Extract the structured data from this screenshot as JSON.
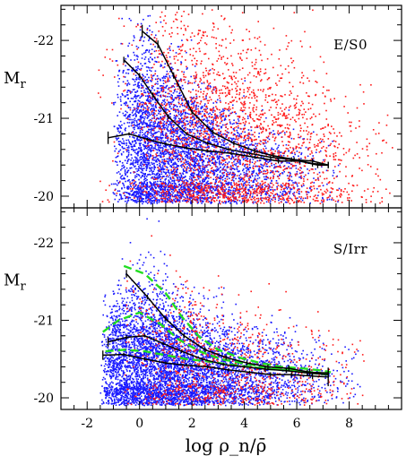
{
  "chart_data": [
    {
      "type": "scatter",
      "label": "E/S0",
      "ylabel": "M_r",
      "xlim": [
        -3,
        10
      ],
      "ylim": [
        -19.85,
        -22.45
      ],
      "yticks": [
        -22,
        -21,
        -20
      ],
      "ytick_labels": [
        "-22",
        "-21",
        "-20"
      ],
      "clouds": [
        {
          "name": "blue",
          "color": "#1a1aff",
          "count": 4200,
          "density": [
            [
              -2,
              -0.8
            ],
            [
              0,
              1.0
            ],
            [
              1,
              1.0
            ],
            [
              2,
              0.7
            ],
            [
              3,
              0.45
            ],
            [
              4,
              0.3
            ],
            [
              5,
              0.18
            ],
            [
              6,
              0.08
            ],
            [
              7,
              0.03
            ]
          ],
          "ridge": [
            [
              -2,
              -20.55
            ],
            [
              0,
              -20.75
            ],
            [
              2,
              -20.55
            ],
            [
              4,
              -20.4
            ],
            [
              6,
              -20.35
            ],
            [
              7,
              -20.3
            ]
          ],
          "spread": [
            [
              -2,
              0.35
            ],
            [
              0,
              0.65
            ],
            [
              2,
              0.45
            ],
            [
              4,
              0.3
            ],
            [
              7,
              0.25
            ]
          ]
        },
        {
          "name": "red",
          "color": "#ff1a1a",
          "count": 2400,
          "density": [
            [
              -1,
              0.05
            ],
            [
              0,
              0.25
            ],
            [
              1,
              0.7
            ],
            [
              2,
              1.0
            ],
            [
              3,
              1.0
            ],
            [
              4,
              0.9
            ],
            [
              5,
              0.75
            ],
            [
              6,
              0.6
            ],
            [
              7,
              0.4
            ],
            [
              8,
              0.2
            ],
            [
              9,
              0.08
            ]
          ],
          "ridge": [
            [
              0,
              -21.2
            ],
            [
              2,
              -21.0
            ],
            [
              4,
              -20.75
            ],
            [
              6,
              -20.6
            ],
            [
              8,
              -20.5
            ]
          ],
          "spread": [
            [
              0,
              0.9
            ],
            [
              3,
              0.75
            ],
            [
              6,
              0.6
            ],
            [
              8,
              0.5
            ]
          ]
        }
      ],
      "lines": [
        {
          "name": "upper",
          "x": [
            0.1,
            0.7,
            1.3,
            2.0,
            2.8,
            3.6,
            4.4,
            5.1,
            5.9,
            6.6,
            7.2
          ],
          "y": [
            -22.12,
            -21.95,
            -21.55,
            -21.08,
            -20.82,
            -20.68,
            -20.58,
            -20.52,
            -20.47,
            -20.42,
            -20.4
          ],
          "err": [
            0.08,
            0.05,
            0.04,
            0.03,
            0.03,
            0.03,
            0.03,
            0.03,
            0.03,
            0.04,
            0.04
          ]
        },
        {
          "name": "middle",
          "x": [
            -0.6,
            0.0,
            0.5,
            1.1,
            1.8,
            2.6,
            3.4,
            4.2,
            5.0,
            5.8,
            6.6,
            7.2
          ],
          "y": [
            -21.75,
            -21.55,
            -21.3,
            -21.02,
            -20.8,
            -20.68,
            -20.6,
            -20.55,
            -20.5,
            -20.47,
            -20.45,
            -20.4
          ],
          "err": [
            0.04,
            0.03,
            0.03,
            0.03,
            0.02,
            0.02,
            0.02,
            0.02,
            0.02,
            0.03,
            0.03,
            0.04
          ]
        },
        {
          "name": "lower",
          "x": [
            -1.2,
            -0.4,
            0.3,
            1.0,
            1.8,
            2.6,
            3.5,
            4.4,
            5.3,
            6.1,
            6.8,
            7.2
          ],
          "y": [
            -20.75,
            -20.8,
            -20.73,
            -20.67,
            -20.62,
            -20.58,
            -20.55,
            -20.5,
            -20.45,
            -20.45,
            -20.4,
            -20.4
          ],
          "err": [
            0.08,
            0.02,
            0.02,
            0.02,
            0.02,
            0.02,
            0.02,
            0.02,
            0.03,
            0.03,
            0.04,
            0.04
          ]
        }
      ]
    },
    {
      "type": "scatter",
      "label": "S/Irr",
      "ylabel": "M_r",
      "xlabel": "log ρ_n/ρ̄",
      "xlim": [
        -3,
        10
      ],
      "xticks": [
        -2,
        0,
        2,
        4,
        6,
        8
      ],
      "xtick_labels": [
        "-2",
        "0",
        "2",
        "4",
        "6",
        "8"
      ],
      "ylim": [
        -19.85,
        -22.45
      ],
      "yticks": [
        -22,
        -21,
        -20
      ],
      "ytick_labels": [
        "-22",
        "-21",
        "-20"
      ],
      "clouds": [
        {
          "name": "blue",
          "color": "#1a1aff",
          "count": 5200,
          "density": [
            [
              -2,
              -0.8
            ],
            [
              -1,
              0.75
            ],
            [
              0,
              1.0
            ],
            [
              1,
              1.0
            ],
            [
              2,
              0.75
            ],
            [
              3,
              0.5
            ],
            [
              4,
              0.35
            ],
            [
              5,
              0.22
            ],
            [
              6,
              0.12
            ],
            [
              7,
              0.06
            ],
            [
              8,
              0.02
            ]
          ],
          "ridge": [
            [
              -2,
              -20.45
            ],
            [
              0,
              -20.5
            ],
            [
              2,
              -20.4
            ],
            [
              4,
              -20.3
            ],
            [
              6,
              -20.3
            ],
            [
              7.5,
              -20.3
            ]
          ],
          "spread": [
            [
              -2,
              0.35
            ],
            [
              0,
              0.5
            ],
            [
              2,
              0.4
            ],
            [
              4,
              0.3
            ],
            [
              7,
              0.25
            ]
          ]
        },
        {
          "name": "red",
          "color": "#ff1a1a",
          "count": 900,
          "density": [
            [
              0,
              0.3
            ],
            [
              1,
              0.8
            ],
            [
              2,
              1.0
            ],
            [
              3,
              1.0
            ],
            [
              4,
              0.8
            ],
            [
              5,
              0.6
            ],
            [
              6,
              0.4
            ],
            [
              7,
              0.25
            ],
            [
              8,
              0.1
            ]
          ],
          "ridge": [
            [
              0,
              -20.6
            ],
            [
              2,
              -20.5
            ],
            [
              4,
              -20.4
            ],
            [
              6,
              -20.35
            ],
            [
              8,
              -20.3
            ]
          ],
          "spread": [
            [
              0,
              0.6
            ],
            [
              3,
              0.45
            ],
            [
              6,
              0.35
            ],
            [
              8,
              0.3
            ]
          ]
        }
      ],
      "lines": [
        {
          "name": "upper",
          "x": [
            -0.5,
            0.3,
            1.0,
            1.7,
            2.5,
            3.3,
            4.1,
            4.9,
            5.7,
            6.5,
            7.2
          ],
          "y": [
            -21.6,
            -21.3,
            -21.02,
            -20.8,
            -20.62,
            -20.52,
            -20.45,
            -20.4,
            -20.38,
            -20.33,
            -20.32
          ],
          "err": [
            0.05,
            0.03,
            0.03,
            0.03,
            0.03,
            0.03,
            0.03,
            0.03,
            0.04,
            0.05,
            0.06
          ]
        },
        {
          "name": "middle",
          "x": [
            -1.2,
            -0.5,
            0.2,
            0.9,
            1.6,
            2.4,
            3.2,
            4.0,
            4.8,
            5.6,
            6.4,
            7.2
          ],
          "y": [
            -20.72,
            -20.78,
            -20.8,
            -20.7,
            -20.6,
            -20.5,
            -20.43,
            -20.4,
            -20.37,
            -20.35,
            -20.32,
            -20.3
          ],
          "err": [
            0.06,
            0.03,
            0.02,
            0.02,
            0.02,
            0.02,
            0.02,
            0.02,
            0.03,
            0.03,
            0.04,
            0.05
          ]
        },
        {
          "name": "lower",
          "x": [
            -1.4,
            -0.6,
            0.2,
            1.0,
            1.8,
            2.6,
            3.4,
            4.2,
            5.0,
            5.8,
            6.6,
            7.2
          ],
          "y": [
            -20.55,
            -20.56,
            -20.5,
            -20.45,
            -20.42,
            -20.4,
            -20.36,
            -20.33,
            -20.3,
            -20.3,
            -20.28,
            -20.27
          ],
          "err": [
            0.06,
            0.02,
            0.02,
            0.02,
            0.02,
            0.02,
            0.02,
            0.02,
            0.03,
            0.03,
            0.04,
            0.12
          ]
        }
      ],
      "dashed_lines": [
        {
          "name": "green-upper",
          "color": "#22dd22",
          "x": [
            -0.6,
            0.2,
            1.0,
            1.6,
            2.3,
            3.0,
            3.8,
            4.6,
            5.4,
            6.2,
            7.0,
            7.3
          ],
          "y": [
            -21.7,
            -21.6,
            -21.35,
            -21.05,
            -20.78,
            -20.62,
            -20.52,
            -20.45,
            -20.4,
            -20.38,
            -20.35,
            -20.33
          ]
        },
        {
          "name": "green-middle",
          "color": "#22dd22",
          "x": [
            -1.4,
            -0.8,
            0.0,
            0.8,
            1.5,
            2.3,
            3.1,
            3.9,
            4.7,
            5.5,
            6.3,
            7.2
          ],
          "y": [
            -20.85,
            -21.0,
            -21.1,
            -20.95,
            -20.75,
            -20.6,
            -20.5,
            -20.45,
            -20.4,
            -20.37,
            -20.33,
            -20.3
          ]
        },
        {
          "name": "green-lower",
          "color": "#22dd22",
          "x": [
            -1.3,
            -0.6,
            0.2,
            1.0,
            1.8,
            2.6,
            3.4,
            4.2,
            5.0,
            5.8,
            6.6,
            7.2
          ],
          "y": [
            -20.6,
            -20.62,
            -20.6,
            -20.55,
            -20.5,
            -20.47,
            -20.43,
            -20.4,
            -20.37,
            -20.35,
            -20.33,
            -20.3
          ]
        }
      ]
    }
  ]
}
